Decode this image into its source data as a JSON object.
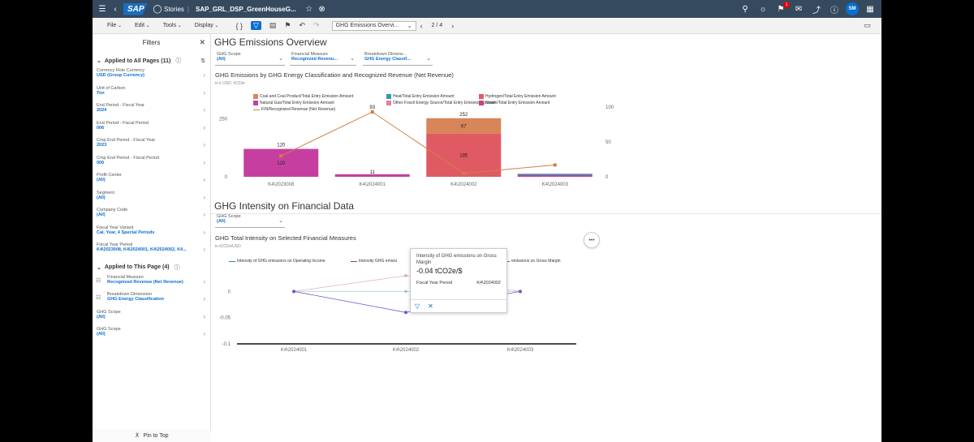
{
  "shell": {
    "logo": "SAP",
    "stories_label": "Stories",
    "doc_title": "SAP_GRL_DSP_GreenHouseG...",
    "notification_count": "1",
    "avatar_initials": "SM"
  },
  "toolbar": {
    "file": "File",
    "edit": "Edit",
    "tools": "Tools",
    "display": "Display",
    "page_select": "GHG Emissions Overvi...",
    "page_num": "2 / 4"
  },
  "filters": {
    "title": "Filters",
    "section_all": "Applied to All Pages (11)",
    "all_items": [
      {
        "label": "Currency Role Currency",
        "value": "USD (Group Currency)"
      },
      {
        "label": "Unit of Carbon",
        "value": "Ton"
      },
      {
        "label": "End Period - Fiscal Year",
        "value": "2024"
      },
      {
        "label": "End Period - Fiscal Period",
        "value": "006"
      },
      {
        "label": "Cmp End Period - Fiscal Year",
        "value": "2023"
      },
      {
        "label": "Cmp End Period - Fiscal Period",
        "value": "006"
      },
      {
        "label": "Profit Center",
        "value": "(All)"
      },
      {
        "label": "Segment",
        "value": "(All)"
      },
      {
        "label": "Company Code",
        "value": "(All)"
      },
      {
        "label": "Fiscal Year Variant",
        "value": "Cal. Year, 4 Special Periods"
      },
      {
        "label": "Fiscal Year Period",
        "value": "K4\\2023008, K4\\2024001, K4\\2024002, K4..."
      }
    ],
    "section_page": "Applied to This Page (4)",
    "page_items": [
      {
        "label": "Financial Measure",
        "value": "Recognized Revenue (Net Revenue)",
        "icon": "measure-icon"
      },
      {
        "label": "Breakdown Dimension",
        "value": "GHG Energy Classification",
        "icon": "dimension-icon"
      },
      {
        "label": "GHG Scope",
        "value": "(All)"
      },
      {
        "label": "GHG Scope",
        "value": "(All)"
      }
    ],
    "pin": "Pin to Top"
  },
  "overview": {
    "title": "GHG Emissions Overview",
    "dropdowns": [
      {
        "label": "GHG Scope",
        "value": "(All)"
      },
      {
        "label": "Financial Measure",
        "value": "Recognized Revenu..."
      },
      {
        "label": "Breakdown Dimens...",
        "value": "GHG Energy Classif..."
      }
    ]
  },
  "intensity": {
    "title": "GHG Intensity on Financial Data",
    "dropdown": {
      "label": "GHG Scope",
      "value": "(All)"
    }
  },
  "popover": {
    "title": "Intensity of GHG emissions on Gross Margin",
    "value": "-0.04 tCO2e/$",
    "row_label": "Fiscal Year Period",
    "row_value": "K4\\2024002"
  },
  "chart_data": [
    {
      "type": "bar",
      "title": "GHG Emissions by GHG Energy Classification and Recognized Revenue (Net Revenue)",
      "subtitle": "in k USD, tCO2e",
      "categories": [
        "K4\\2023008",
        "K4\\2024001",
        "K4\\2024002",
        "K4\\2024003"
      ],
      "series": [
        {
          "name": "Coal and Coal Product/Total Entry Emission Amount",
          "color": "#d9855a",
          "values": [
            0,
            0,
            67,
            0
          ]
        },
        {
          "name": "Heat/Total Entry Emission Amount",
          "color": "#2e9bb0",
          "values": [
            0,
            0,
            0,
            4
          ]
        },
        {
          "name": "Hydrogen/Total Entry Emission Amount",
          "color": "#e05a63",
          "values": [
            0,
            0,
            185,
            0
          ]
        },
        {
          "name": "Natural Gas/Total Entry Emission Amount",
          "color": "#c63fa0",
          "values": [
            120,
            11,
            0,
            9
          ]
        },
        {
          "name": "Other Fossil Energy Source/Total Entry Emission Amount",
          "color": "#e67fa8",
          "values": [
            0,
            0,
            0,
            0
          ]
        },
        {
          "name": "Steam/Total Entry Emission Amount",
          "color": "#cf3d8c",
          "values": [
            0,
            0,
            0,
            0
          ]
        }
      ],
      "line": {
        "name": "FIN/Recognized Revenue (Net Revenue)",
        "color": "#d08047",
        "values": [
          30,
          93,
          5,
          17
        ]
      },
      "total_labels": [
        "120",
        "",
        "252",
        ""
      ],
      "segment_labels": [
        [
          "120"
        ],
        [
          "11"
        ],
        [
          "67",
          "185"
        ],
        [
          ""
        ]
      ],
      "line_labels": [
        "",
        "93",
        "",
        ""
      ],
      "y_ticks_left": [
        "250",
        "0"
      ],
      "y_ticks_right": [
        "100",
        "50",
        "0"
      ],
      "ylim_left": [
        0,
        300
      ],
      "ylim_right": [
        0,
        100
      ]
    },
    {
      "type": "line",
      "title": "GHG Total Intensity on Selected Financial Measures",
      "subtitle": "in tCO2e/USD",
      "categories": [
        "K4\\2024001",
        "K4\\2024002",
        "K4\\2024003"
      ],
      "series": [
        {
          "name": "Intensity of GHG emissions on Operating Income",
          "color": "#2a8c82",
          "values": [
            0,
            0,
            0
          ]
        },
        {
          "name": "Intensity GHG emissi...",
          "color": "#9b3a8c",
          "values": [
            0,
            0.03,
            0
          ]
        },
        {
          "name": "...emissions on Gross Margin",
          "color": "#6a5acd",
          "values": [
            0,
            -0.04,
            0
          ]
        }
      ],
      "legend_labels": [
        "Intensity of GHG emissions on Operating Income",
        "Intensity GHG emissi",
        "emissions on Gross Margin"
      ],
      "y_ticks": [
        "0",
        "-0.05",
        "-0.1"
      ],
      "ylim": [
        -0.1,
        0.05
      ]
    }
  ]
}
